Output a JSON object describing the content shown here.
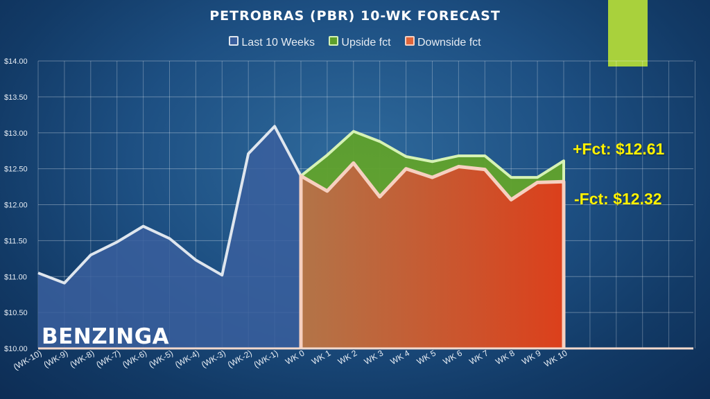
{
  "colors": {
    "accent": "#a9d13c",
    "last_color": "#3a5f9e",
    "last_line": "#dfe6ee",
    "upside_color": "#5ea02b",
    "upside_line": "#d6f2b5",
    "downside_color": "#e0653a",
    "downside_line": "#f6d0c0",
    "forecast_label": "#fff200"
  },
  "annotations": {
    "upside_label": "+Fct: $12.61",
    "downside_label": "-Fct: $12.32"
  },
  "brand": "BENZINGA",
  "chart_data": {
    "type": "area",
    "title": "PETROBRAS (PBR) 10-WK FORECAST",
    "xlabel": "",
    "ylabel": "",
    "ylim": [
      10.0,
      14.0
    ],
    "yticks": [
      "$10.00",
      "$10.50",
      "$11.00",
      "$11.50",
      "$12.00",
      "$12.50",
      "$13.00",
      "$13.50",
      "$14.00"
    ],
    "grid": true,
    "legend_position": "top",
    "categories": [
      "(WK-10)",
      "(WK-9)",
      "(WK-8)",
      "(WK-7)",
      "(WK-6)",
      "(WK-5)",
      "(WK-4)",
      "(WK-3)",
      "(WK-2)",
      "(WK-1)",
      "WK 0",
      "WK 1",
      "WK 2",
      "WK 3",
      "WK 4",
      "WK 5",
      "WK 6",
      "WK 7",
      "WK 8",
      "WK 9",
      "WK 10"
    ],
    "series": [
      {
        "name": "Last 10 Weeks",
        "values": [
          11.05,
          10.91,
          11.3,
          11.48,
          11.7,
          11.53,
          11.23,
          11.02,
          12.71,
          13.09,
          12.4,
          null,
          null,
          null,
          null,
          null,
          null,
          null,
          null,
          null,
          null
        ]
      },
      {
        "name": "Upside fct",
        "values": [
          null,
          null,
          null,
          null,
          null,
          null,
          null,
          null,
          null,
          null,
          12.4,
          12.69,
          13.02,
          12.88,
          12.67,
          12.6,
          12.68,
          12.68,
          12.38,
          12.38,
          12.61
        ]
      },
      {
        "name": "Downside fct",
        "values": [
          null,
          null,
          null,
          null,
          null,
          null,
          null,
          null,
          null,
          null,
          12.4,
          12.19,
          12.58,
          12.11,
          12.5,
          12.38,
          12.53,
          12.49,
          12.07,
          12.31,
          12.32
        ]
      }
    ]
  }
}
